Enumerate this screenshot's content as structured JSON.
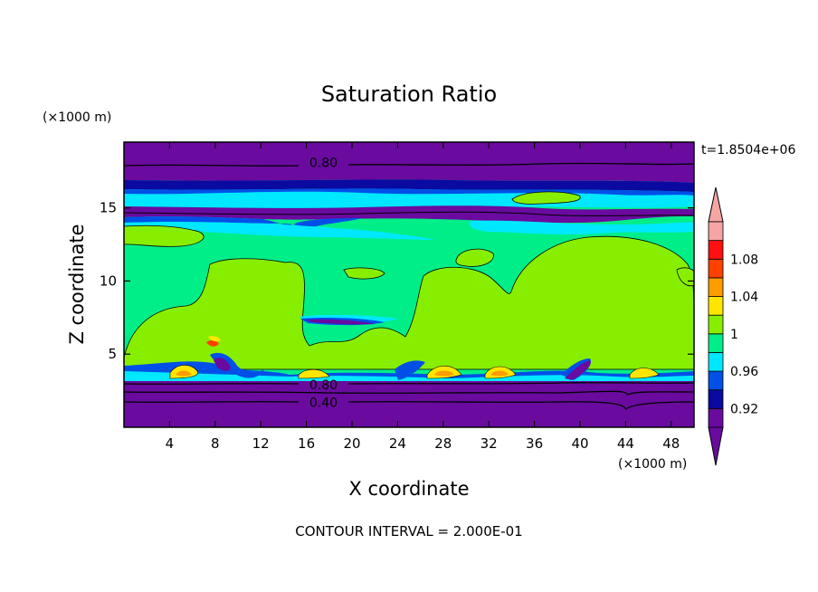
{
  "chart_data": {
    "type": "contour",
    "title": "Saturation Ratio",
    "xlabel": "X coordinate",
    "ylabel": "Z coordinate",
    "x_unit": "(×1000 m)",
    "y_unit": "(×1000 m)",
    "xlim": [
      0,
      50
    ],
    "ylim": [
      0,
      19.5
    ],
    "x_ticks": [
      4,
      8,
      12,
      16,
      20,
      24,
      28,
      32,
      36,
      40,
      44,
      48
    ],
    "y_ticks": [
      5,
      10,
      15
    ],
    "time_label": "t=1.8504e+06",
    "contour_interval_text": "CONTOUR INTERVAL = 2.000E-01",
    "contour_labels": [
      {
        "text": "0.80",
        "x": 17.5,
        "y": 18.1
      },
      {
        "text": "0.80",
        "x": 17.5,
        "y": 2.9
      },
      {
        "text": "0.40",
        "x": 17.5,
        "y": 1.7
      }
    ],
    "colorbar": {
      "levels": [
        0.92,
        0.94,
        0.96,
        0.98,
        1.0,
        1.02,
        1.04,
        1.06,
        1.08,
        1.1
      ],
      "tick_labels": [
        "0.92",
        "0.96",
        "1",
        "1.04",
        "1.08"
      ],
      "tick_values": [
        0.92,
        0.96,
        1.0,
        1.04,
        1.08
      ],
      "colors": [
        "#6a0a9f",
        "#0a0aa0",
        "#0050e8",
        "#00e8ff",
        "#00ee88",
        "#88ee00",
        "#ffe600",
        "#ff9c00",
        "#ff4000",
        "#ff1010",
        "#f6a5a5"
      ],
      "under_color": "#6a0a9f",
      "over_color": "#f6a5a5"
    }
  }
}
